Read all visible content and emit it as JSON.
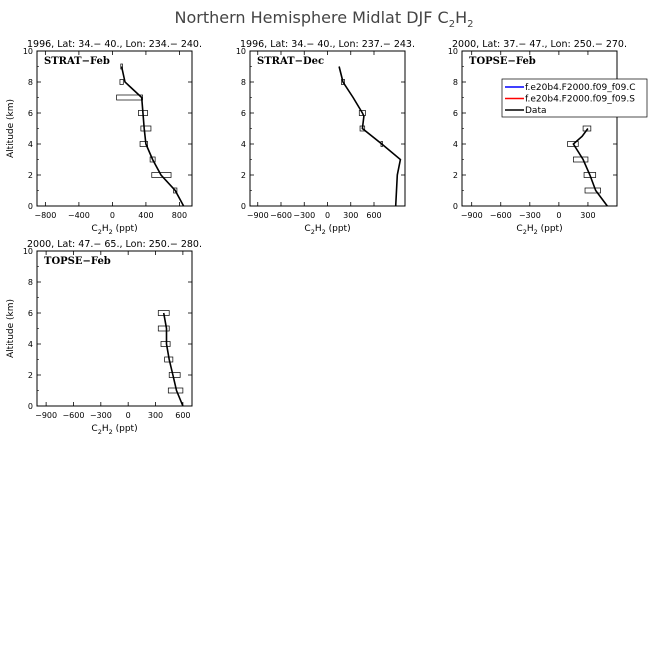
{
  "figure": {
    "title_main": "Northern Hemisphere Midlat DJF C",
    "title_sub1": "2",
    "title_mid": "H",
    "title_sub2": "2"
  },
  "colors": {
    "data_line": "#000000",
    "legend_model_1": "#0000ff",
    "legend_model_2": "#ff0000",
    "axes": "#000000"
  },
  "legend": {
    "entries": [
      {
        "label": "f.e20b4.F2000.f09_f09.C",
        "color": "#0000ff"
      },
      {
        "label": "f.e20b4.F2000.f09_f09.S",
        "color": "#ff0000"
      },
      {
        "label": "Data",
        "color": "#000000"
      }
    ]
  },
  "chart_data": [
    {
      "type": "line",
      "panel_label": "STRAT−Feb",
      "subtitle": "1996, Lat: 34.− 40., Lon: 234.− 240.",
      "xlabel": {
        "main": "C",
        "sub1": "2",
        "mid": "H",
        "sub2": "2",
        "unit": " (ppt)"
      },
      "ylabel": "Altitude (km)",
      "xlim": [
        -900,
        950
      ],
      "ylim": [
        0,
        10
      ],
      "xticks": [
        -800,
        -400,
        0,
        400,
        800
      ],
      "yticks": [
        0,
        2,
        4,
        6,
        8,
        10
      ],
      "series": [
        {
          "x": [
            850,
            750,
            580,
            480,
            400,
            380,
            350,
            150,
            110
          ],
          "y": [
            0,
            1,
            2,
            3,
            4,
            5,
            7,
            8,
            9
          ]
        }
      ],
      "boxes": [
        {
          "y": 1,
          "x1": 730,
          "x2": 770
        },
        {
          "y": 2,
          "x1": 470,
          "x2": 700
        },
        {
          "y": 3,
          "x1": 450,
          "x2": 510
        },
        {
          "y": 4,
          "x1": 330,
          "x2": 420
        },
        {
          "y": 5,
          "x1": 340,
          "x2": 460
        },
        {
          "y": 6,
          "x1": 310,
          "x2": 420
        },
        {
          "y": 7,
          "x1": 50,
          "x2": 360
        },
        {
          "y": 8,
          "x1": 90,
          "x2": 130
        },
        {
          "y": 9,
          "x1": 100,
          "x2": 120
        }
      ]
    },
    {
      "type": "line",
      "panel_label": "STRAT−Dec",
      "subtitle": "1996, Lat: 34.− 40., Lon: 237.− 243.",
      "xlabel": {
        "main": "C",
        "sub1": "2",
        "mid": "H",
        "sub2": "2",
        "unit": " (ppt)"
      },
      "ylabel": "",
      "xlim": [
        -1000,
        1000
      ],
      "ylim": [
        0,
        10
      ],
      "xticks": [
        -900,
        -600,
        -300,
        0,
        300,
        600
      ],
      "yticks": [
        0,
        2,
        4,
        6,
        8,
        10
      ],
      "series": [
        {
          "x": [
            880,
            890,
            900,
            940,
            700,
            450,
            470,
            450,
            330,
            200,
            150
          ],
          "y": [
            0,
            1,
            2,
            3,
            4,
            5,
            5.8,
            6,
            7,
            8,
            9
          ]
        }
      ],
      "boxes": [
        {
          "y": 4,
          "x1": 690,
          "x2": 710
        },
        {
          "y": 5,
          "x1": 420,
          "x2": 480
        },
        {
          "y": 6,
          "x1": 410,
          "x2": 490
        },
        {
          "y": 8,
          "x1": 180,
          "x2": 220
        }
      ]
    },
    {
      "type": "line",
      "panel_label": "TOPSE−Feb",
      "subtitle": "2000, Lat: 37.− 47., Lon: 250.− 270.",
      "xlabel": {
        "main": "C",
        "sub1": "2",
        "mid": "H",
        "sub2": "2",
        "unit": " (ppt)"
      },
      "ylabel": "",
      "xlim": [
        -1000,
        600
      ],
      "ylim": [
        0,
        10
      ],
      "xticks": [
        -900,
        -600,
        -300,
        0,
        300
      ],
      "yticks": [
        0,
        2,
        4,
        6,
        8,
        10
      ],
      "series": [
        {
          "x": [
            500,
            380,
            320,
            250,
            150,
            240,
            300
          ],
          "y": [
            0,
            1,
            2,
            3,
            4,
            4.5,
            5
          ]
        }
      ],
      "boxes": [
        {
          "y": 1,
          "x1": 270,
          "x2": 430
        },
        {
          "y": 2,
          "x1": 260,
          "x2": 380
        },
        {
          "y": 3,
          "x1": 150,
          "x2": 300
        },
        {
          "y": 4,
          "x1": 90,
          "x2": 200
        },
        {
          "y": 5,
          "x1": 250,
          "x2": 330
        }
      ],
      "has_legend": true
    },
    {
      "type": "line",
      "panel_label": "TOPSE−Feb",
      "subtitle": "2000, Lat: 47.− 65., Lon: 250.− 280.",
      "xlabel": {
        "main": "C",
        "sub1": "2",
        "mid": "H",
        "sub2": "2",
        "unit": " (ppt)"
      },
      "ylabel": "Altitude (km)",
      "xlim": [
        -1000,
        700
      ],
      "ylim": [
        0,
        10
      ],
      "xticks": [
        -900,
        -600,
        -300,
        0,
        300,
        600
      ],
      "yticks": [
        0,
        2,
        4,
        6,
        8,
        10
      ],
      "series": [
        {
          "x": [
            600,
            530,
            490,
            450,
            420,
            420,
            390
          ],
          "y": [
            0,
            1,
            2,
            3,
            4,
            5,
            6
          ]
        }
      ],
      "boxes": [
        {
          "y": 1,
          "x1": 440,
          "x2": 600
        },
        {
          "y": 2,
          "x1": 450,
          "x2": 570
        },
        {
          "y": 3,
          "x1": 400,
          "x2": 490
        },
        {
          "y": 4,
          "x1": 360,
          "x2": 460
        },
        {
          "y": 5,
          "x1": 330,
          "x2": 450
        },
        {
          "y": 6,
          "x1": 330,
          "x2": 450
        }
      ]
    }
  ]
}
